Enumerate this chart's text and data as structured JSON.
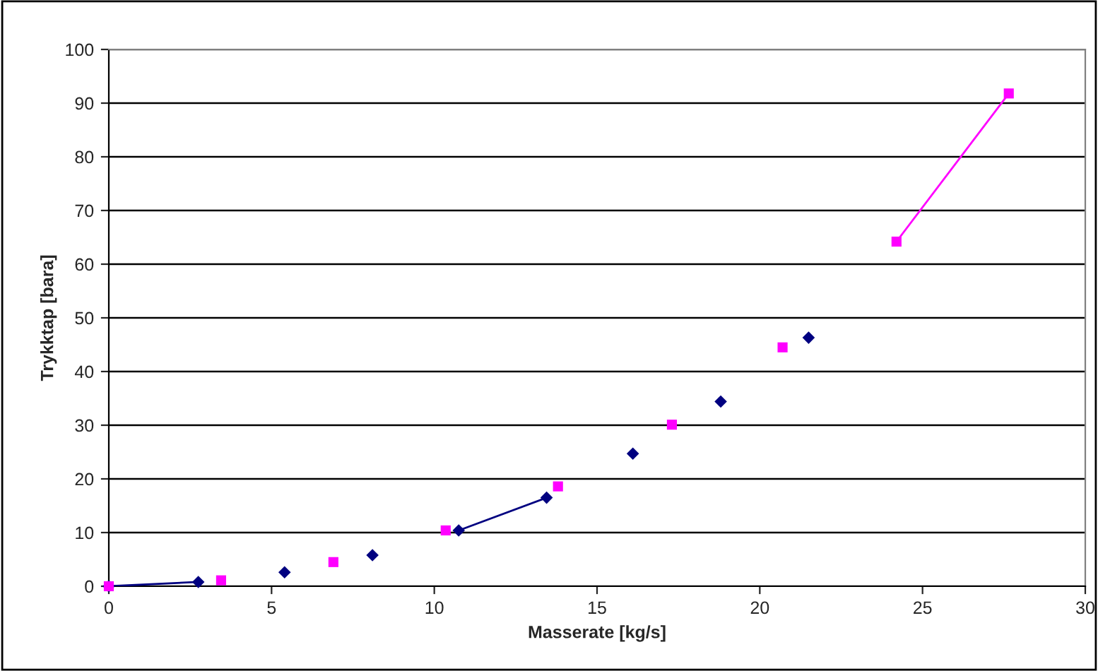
{
  "chart_data": {
    "type": "scatter",
    "xlabel": "Masserate [kg/s]",
    "ylabel": "Trykktap [bara]",
    "xlim": [
      0,
      30
    ],
    "xticks": [
      0,
      5,
      10,
      15,
      20,
      25,
      30
    ],
    "ylim": [
      0,
      100
    ],
    "yticks": [
      0,
      10,
      20,
      30,
      40,
      50,
      60,
      70,
      80,
      90,
      100
    ],
    "grid": "y",
    "legend": false,
    "series": [
      {
        "color": "#000080",
        "marker": "diamond",
        "x": [
          0,
          2.75,
          5.4,
          8.1,
          10.75,
          13.45,
          16.1,
          18.8,
          21.5
        ],
        "values": [
          0,
          0.8,
          2.6,
          5.8,
          10.4,
          16.5,
          24.7,
          34.4,
          46.3
        ]
      },
      {
        "color": "#ff00ff",
        "marker": "square",
        "x": [
          0,
          3.45,
          6.9,
          10.35,
          13.8,
          17.3,
          20.7,
          24.2,
          27.65
        ],
        "values": [
          0,
          1.1,
          4.5,
          10.4,
          18.6,
          30.1,
          44.5,
          64.2,
          91.8
        ]
      },
      {
        "type": "line",
        "color": "#000080",
        "marker": "none",
        "x": [
          0,
          2.75,
          5.4,
          10.75,
          13.45
        ],
        "values": [
          0,
          0.8,
          null,
          10.4,
          16.5
        ]
      },
      {
        "type": "line",
        "color": "#ff00ff",
        "marker": "none",
        "x": [
          24.2,
          27.65
        ],
        "values": [
          64.2,
          91.8
        ]
      }
    ]
  }
}
